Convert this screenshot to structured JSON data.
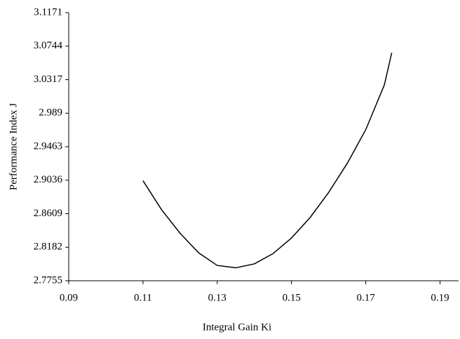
{
  "chart_data": {
    "type": "line",
    "x_label": "Integral Gain Ki",
    "y_label": "Performance Index J",
    "x": [
      0.11,
      0.115,
      0.12,
      0.125,
      0.13,
      0.135,
      0.14,
      0.145,
      0.15,
      0.155,
      0.16,
      0.165,
      0.17,
      0.175,
      0.177
    ],
    "series": [
      {
        "name": "J",
        "color": "#000000",
        "values": [
          2.903,
          2.866,
          2.836,
          2.811,
          2.795,
          2.792,
          2.797,
          2.81,
          2.83,
          2.856,
          2.888,
          2.925,
          2.968,
          3.025,
          3.066
        ]
      }
    ],
    "xlim": [
      0.09,
      0.195
    ],
    "xticks": [
      0.09,
      0.11,
      0.13,
      0.15,
      0.17,
      0.19
    ],
    "ylim": [
      2.7755,
      3.1171
    ],
    "yticks": [
      2.7755,
      2.8182,
      2.8609,
      2.9036,
      2.9463,
      2.989,
      3.0317,
      3.0744,
      3.1171
    ],
    "grid": false
  }
}
